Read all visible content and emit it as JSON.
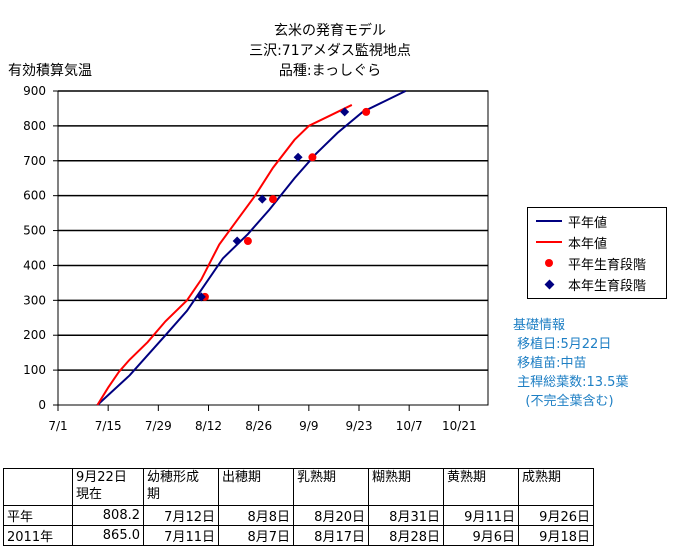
{
  "title_lines": [
    "玄米の発育モデル",
    "三沢:71アメダス監視地点",
    "品種:まっしぐら"
  ],
  "chart_data": {
    "type": "line",
    "ylabel": "有効積算気温",
    "ylim": [
      0,
      900
    ],
    "yticks": [
      "0",
      "100",
      "200",
      "300",
      "400",
      "500",
      "600",
      "700",
      "800",
      "900"
    ],
    "xlim": [
      0,
      120
    ],
    "xticks": [
      {
        "label": "7/1",
        "x": 0
      },
      {
        "label": "7/15",
        "x": 14
      },
      {
        "label": "7/29",
        "x": 28
      },
      {
        "label": "8/12",
        "x": 42
      },
      {
        "label": "8/26",
        "x": 56
      },
      {
        "label": "9/9",
        "x": 70
      },
      {
        "label": "9/23",
        "x": 84
      },
      {
        "label": "10/7",
        "x": 98
      },
      {
        "label": "10/21",
        "x": 112
      }
    ],
    "grid": "horizontal",
    "series": [
      {
        "name": "平年値",
        "color": "#000080",
        "kind": "line",
        "x": [
          11,
          20,
          30,
          36,
          40,
          46,
          53,
          59,
          66,
          72,
          78,
          85,
          91,
          97
        ],
        "y": [
          0,
          85,
          200,
          270,
          330,
          420,
          490,
          560,
          650,
          720,
          780,
          840,
          870,
          900
        ]
      },
      {
        "name": "本年値",
        "color": "#ff0000",
        "kind": "line",
        "x": [
          11,
          14,
          17,
          20,
          25,
          30,
          36,
          40,
          45,
          50,
          55,
          60,
          66,
          70,
          76,
          80,
          82
        ],
        "y": [
          0,
          50,
          95,
          130,
          180,
          240,
          300,
          360,
          460,
          530,
          600,
          680,
          760,
          800,
          830,
          850,
          860
        ]
      },
      {
        "name": "平年生育段階",
        "color": "#ff0000",
        "kind": "dot",
        "x": [
          41,
          53,
          60,
          71,
          86
        ],
        "y": [
          310,
          470,
          590,
          710,
          840
        ]
      },
      {
        "name": "本年生育段階",
        "color": "#000080",
        "kind": "diamond",
        "x": [
          40,
          50,
          57,
          67,
          80
        ],
        "y": [
          310,
          470,
          590,
          710,
          840
        ]
      }
    ]
  },
  "info": {
    "heading": "基礎情報",
    "lines": [
      " 移植日:5月22日",
      " 移植苗:中苗",
      " 主稈総葉数:13.5葉",
      "   (不完全葉含む)"
    ]
  },
  "table": {
    "headers": [
      "9月22日\n現在",
      "幼穂形成\n期",
      "出穂期",
      "乳熟期",
      "糊熟期",
      "黄熟期",
      "成熟期"
    ],
    "rows": [
      {
        "label": "平年",
        "values": [
          "808.2",
          "7月12日",
          "8月8日",
          "8月20日",
          "8月31日",
          "9月11日",
          "9月26日"
        ]
      },
      {
        "label": "2011年",
        "values": [
          "865.0",
          "7月11日",
          "8月7日",
          "8月17日",
          "8月28日",
          "9月6日",
          "9月18日"
        ]
      }
    ]
  }
}
